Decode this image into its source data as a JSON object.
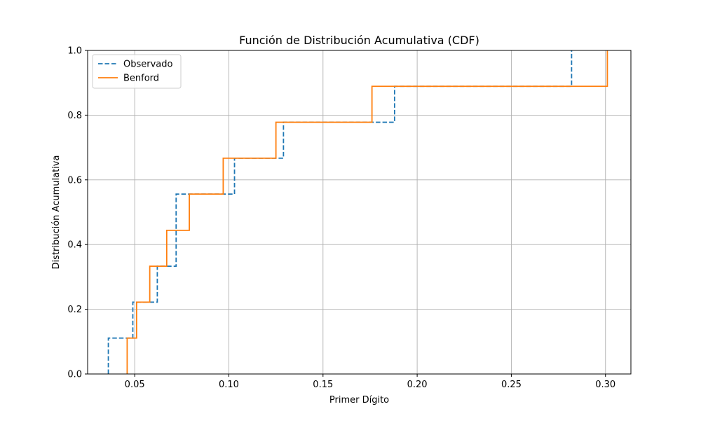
{
  "chart_data": {
    "type": "line",
    "title": "Función de Distribución Acumulativa (CDF)",
    "xlabel": "Primer Dígito",
    "ylabel": "Distribución Acumulativa",
    "xlim": [
      0.025,
      0.3135
    ],
    "ylim": [
      0,
      1
    ],
    "xticks": [
      0.05,
      0.1,
      0.15,
      0.2,
      0.25,
      0.3
    ],
    "xtick_labels": [
      "0.05",
      "0.10",
      "0.15",
      "0.20",
      "0.25",
      "0.30"
    ],
    "yticks": [
      0.0,
      0.2,
      0.4,
      0.6,
      0.8,
      1.0
    ],
    "ytick_labels": [
      "0.0",
      "0.2",
      "0.4",
      "0.6",
      "0.8",
      "1.0"
    ],
    "grid": true,
    "legend_position": "top-left",
    "drawstyle": "steps-post",
    "series": [
      {
        "name": "Observado",
        "color": "#1f77b4",
        "linestyle": "dashed",
        "x": [
          0.036,
          0.049,
          0.062,
          0.072,
          0.103,
          0.129,
          0.188,
          0.282
        ],
        "y": [
          0.111,
          0.222,
          0.333,
          0.556,
          0.667,
          0.778,
          0.889,
          1.0
        ]
      },
      {
        "name": "Benford",
        "color": "#ff7f0e",
        "linestyle": "solid",
        "x": [
          0.046,
          0.051,
          0.058,
          0.067,
          0.079,
          0.097,
          0.125,
          0.176,
          0.301
        ],
        "y": [
          0.111,
          0.222,
          0.333,
          0.444,
          0.556,
          0.667,
          0.778,
          0.889,
          1.0
        ]
      }
    ]
  }
}
